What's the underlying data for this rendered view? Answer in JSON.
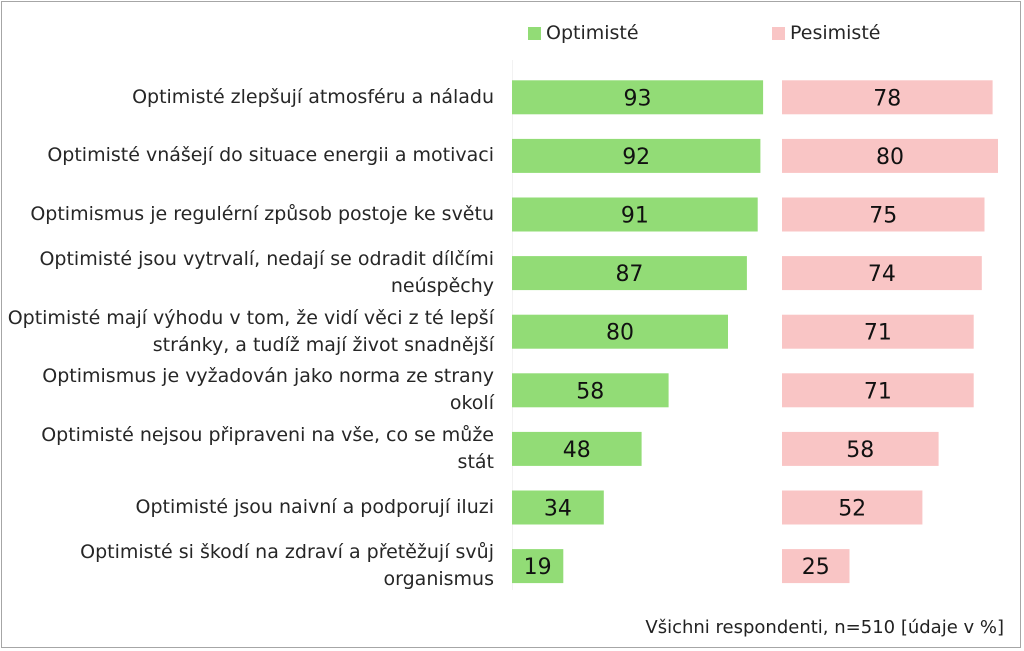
{
  "chart_data": {
    "type": "bar",
    "orientation": "horizontal",
    "layout": "side-by-side panels",
    "categories": [
      "Optimisté zlepšují atmosféru a náladu",
      "Optimisté vnášejí do situace energii a motivaci",
      "Optimismus je regulérní způsob postoje ke světu",
      "Optimisté jsou vytrvalí, nedají se odradit dílčími neúspěchy",
      "Optimisté mají výhodu v tom, že vidí věci z té lepší stránky, a tudíž mají život snadnější",
      "Optimismus je vyžadován jako norma ze strany okolí",
      "Optimisté nejsou připraveni na vše, co se může stát",
      "Optimisté jsou naivní a podporují iluzi",
      "Optimisté si škodí na zdraví a přetěžují svůj organismus"
    ],
    "series": [
      {
        "name": "Optimisté",
        "color": "#92dc76",
        "values": [
          93,
          92,
          91,
          87,
          80,
          58,
          48,
          34,
          19
        ]
      },
      {
        "name": "Pesimisté",
        "color": "#f9c5c5",
        "values": [
          78,
          80,
          75,
          74,
          71,
          71,
          58,
          52,
          25
        ]
      }
    ],
    "xlim": [
      0,
      100
    ],
    "legend": "top",
    "grid": false,
    "data_labels": true,
    "note": "Všichni respondenti, n=510 [údaje v %]"
  }
}
